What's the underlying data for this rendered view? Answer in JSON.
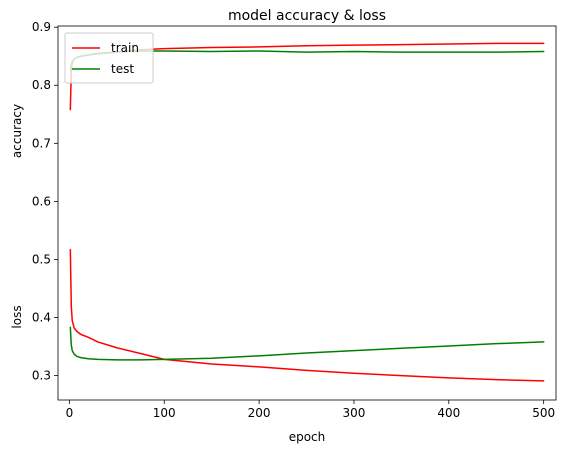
{
  "chart_data": {
    "type": "line",
    "title": "model accuracy & loss",
    "xlabel": "epoch",
    "ylabel_upper": "accuracy",
    "ylabel_lower": "loss",
    "xlim": [
      -12,
      513
    ],
    "ylim": [
      0.258,
      0.902
    ],
    "xticks": [
      0,
      100,
      200,
      300,
      400,
      500
    ],
    "yticks": [
      0.3,
      0.4,
      0.5,
      0.6,
      0.7,
      0.8,
      0.9
    ],
    "grid": false,
    "legend": {
      "placement": "top-left",
      "entries": [
        "train",
        "test"
      ]
    },
    "series": [
      {
        "name": "train",
        "metric": "accuracy",
        "color": "#ff0000",
        "x": [
          1,
          2,
          3,
          5,
          8,
          12,
          20,
          30,
          50,
          75,
          100,
          150,
          200,
          250,
          300,
          350,
          400,
          450,
          500
        ],
        "y": [
          0.758,
          0.825,
          0.838,
          0.845,
          0.848,
          0.85,
          0.852,
          0.854,
          0.857,
          0.861,
          0.863,
          0.865,
          0.866,
          0.868,
          0.869,
          0.87,
          0.871,
          0.872,
          0.872
        ]
      },
      {
        "name": "test",
        "metric": "accuracy",
        "color": "#008000",
        "x": [
          1,
          2,
          3,
          5,
          8,
          12,
          20,
          30,
          50,
          75,
          100,
          150,
          200,
          250,
          300,
          350,
          400,
          450,
          500
        ],
        "y": [
          0.826,
          0.836,
          0.841,
          0.845,
          0.848,
          0.85,
          0.852,
          0.855,
          0.857,
          0.859,
          0.859,
          0.858,
          0.859,
          0.857,
          0.858,
          0.857,
          0.857,
          0.857,
          0.858
        ]
      },
      {
        "name": "train",
        "metric": "loss",
        "color": "#ff0000",
        "x": [
          1,
          2,
          3,
          5,
          8,
          12,
          20,
          30,
          50,
          75,
          100,
          150,
          200,
          250,
          300,
          350,
          400,
          450,
          500
        ],
        "y": [
          0.517,
          0.42,
          0.395,
          0.382,
          0.376,
          0.371,
          0.366,
          0.358,
          0.348,
          0.338,
          0.328,
          0.32,
          0.315,
          0.309,
          0.304,
          0.3,
          0.296,
          0.293,
          0.291
        ]
      },
      {
        "name": "test",
        "metric": "loss",
        "color": "#008000",
        "x": [
          1,
          2,
          3,
          5,
          8,
          12,
          20,
          30,
          50,
          75,
          100,
          150,
          200,
          250,
          300,
          350,
          400,
          450,
          500
        ],
        "y": [
          0.383,
          0.353,
          0.343,
          0.337,
          0.333,
          0.331,
          0.329,
          0.328,
          0.327,
          0.327,
          0.328,
          0.33,
          0.334,
          0.339,
          0.343,
          0.347,
          0.351,
          0.355,
          0.358
        ]
      }
    ]
  }
}
